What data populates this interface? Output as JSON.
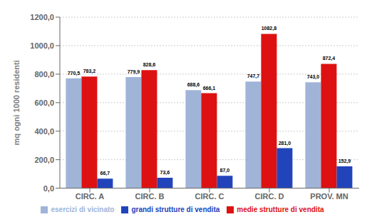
{
  "chart_data": {
    "type": "bar",
    "ylabel": "mq ogni 1000 residenti",
    "categories": [
      "CIRC. A",
      "CIRC. B",
      "CIRC. C",
      "CIRC. D",
      "PROV. MN"
    ],
    "series": [
      {
        "name": "esercizi di vicinato",
        "color": "#a0b4d8",
        "values": [
          770.5,
          779.9,
          688.6,
          747.7,
          743.0
        ],
        "value_labels": [
          "770,5",
          "779,9",
          "688,6",
          "747,7",
          "743,0"
        ]
      },
      {
        "name": "medie strutture di vendita",
        "color": "#dd1111",
        "values": [
          783.2,
          828.6,
          666.1,
          1082.8,
          872.4
        ],
        "value_labels": [
          "783,2",
          "828,6",
          "666,1",
          "1082,8",
          "872,4"
        ]
      },
      {
        "name": "grandi strutture di vendita",
        "color": "#2244bb",
        "values": [
          66.7,
          73.6,
          87.0,
          281.0,
          152.9
        ],
        "value_labels": [
          "66,7",
          "73,6",
          "87,0",
          "281,0",
          "152,9"
        ]
      }
    ],
    "ylim": [
      0,
      1200
    ],
    "yticks": [
      {
        "value": 0,
        "label": "0,0"
      },
      {
        "value": 200,
        "label": "200,0"
      },
      {
        "value": 400,
        "label": "400,0"
      },
      {
        "value": 600,
        "label": "600,0"
      },
      {
        "value": 800,
        "label": "800,0"
      },
      {
        "value": 1000,
        "label": "1000,0"
      },
      {
        "value": 1200,
        "label": "1200,0"
      }
    ],
    "grid": true,
    "legend": "bottom",
    "data_labels": true
  }
}
